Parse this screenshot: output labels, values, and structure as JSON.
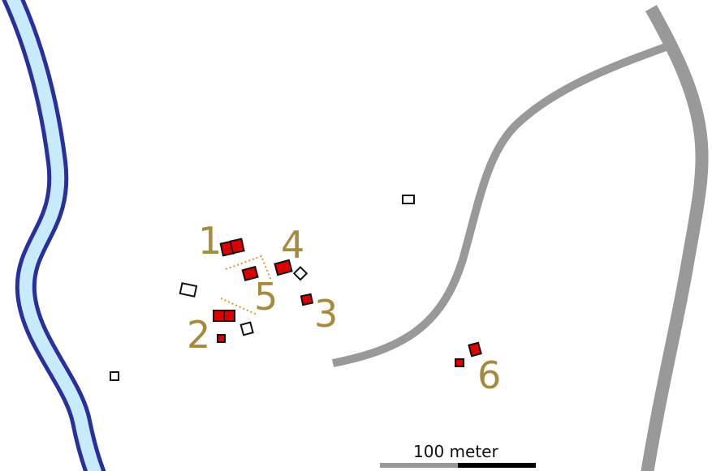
{
  "map": {
    "colors": {
      "river_bank": "#2a2f9e",
      "river_water": "#c8ebfb",
      "road": "#999999",
      "excavated_fill": "#dd0000",
      "building_outline": "#111111",
      "site_label": "#a88a3d",
      "dotted_line": "#d79a2a"
    },
    "features": {
      "river": "river",
      "main_road": "road",
      "side_road": "road"
    },
    "site_labels": [
      "1",
      "2",
      "3",
      "4",
      "5",
      "6"
    ],
    "scale_bar": {
      "label": "100 meter",
      "distance_m": 100,
      "left_segment_color": "#999999",
      "right_segment_color": "#000000"
    }
  }
}
